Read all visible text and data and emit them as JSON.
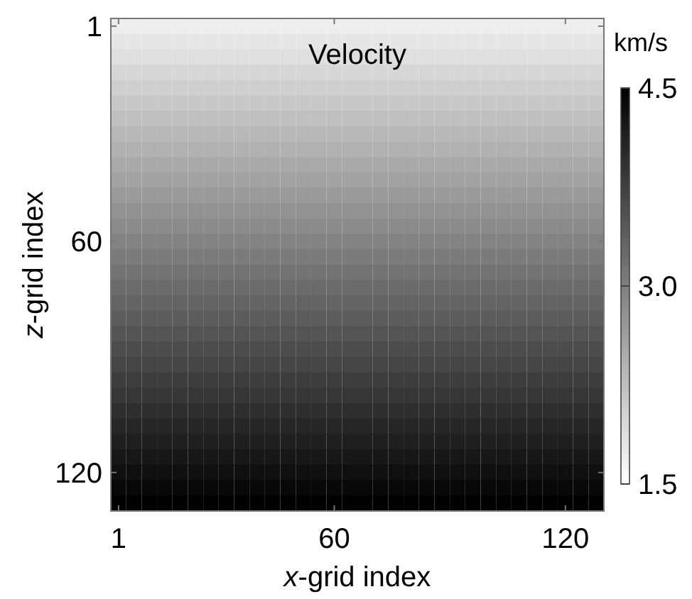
{
  "chart_data": {
    "type": "heatmap",
    "title": "Velocity",
    "xlabel": "x-grid index",
    "ylabel": "z-grid index",
    "clabel": "km/s",
    "categories": [
      "1",
      null,
      null,
      null,
      null,
      null,
      null,
      null,
      null,
      null,
      null,
      null,
      null,
      null,
      "60",
      null,
      null,
      null,
      null,
      null,
      null,
      null,
      null,
      null,
      null,
      null,
      null,
      null,
      null,
      "120",
      null,
      null
    ],
    "y_categories": [
      "1",
      null,
      null,
      null,
      null,
      null,
      null,
      null,
      null,
      null,
      null,
      null,
      null,
      null,
      "60",
      null,
      null,
      null,
      null,
      null,
      null,
      null,
      null,
      null,
      null,
      null,
      null,
      null,
      null,
      "120",
      null,
      null
    ],
    "cells": [
      [
        1.7,
        1.7,
        1.7,
        1.7,
        1.7,
        1.7,
        1.7,
        1.7,
        1.7,
        1.7,
        1.7,
        1.7,
        1.7,
        1.7,
        1.7,
        1.7,
        1.7,
        1.7,
        1.7,
        1.7,
        1.7,
        1.7,
        1.7,
        1.7,
        1.7,
        1.7,
        1.7,
        1.7,
        1.7,
        1.7,
        1.7,
        1.7
      ],
      [
        1.79,
        1.79,
        1.79,
        1.79,
        1.79,
        1.79,
        1.79,
        1.79,
        1.79,
        1.79,
        1.79,
        1.79,
        1.79,
        1.79,
        1.79,
        1.79,
        1.79,
        1.79,
        1.79,
        1.79,
        1.79,
        1.79,
        1.79,
        1.79,
        1.79,
        1.79,
        1.79,
        1.79,
        1.79,
        1.79,
        1.79,
        1.79
      ],
      [
        1.88,
        1.88,
        1.88,
        1.88,
        1.88,
        1.88,
        1.88,
        1.88,
        1.88,
        1.88,
        1.88,
        1.88,
        1.88,
        1.88,
        1.88,
        1.88,
        1.88,
        1.88,
        1.88,
        1.88,
        1.88,
        1.88,
        1.88,
        1.88,
        1.88,
        1.88,
        1.88,
        1.88,
        1.88,
        1.88,
        1.88,
        1.88
      ],
      [
        1.97,
        1.97,
        1.97,
        1.97,
        1.97,
        1.97,
        1.97,
        1.97,
        1.97,
        1.97,
        1.97,
        1.97,
        1.97,
        1.97,
        1.97,
        1.97,
        1.97,
        1.97,
        1.97,
        1.97,
        1.97,
        1.97,
        1.97,
        1.97,
        1.97,
        1.97,
        1.97,
        1.97,
        1.97,
        1.97,
        1.97,
        1.97
      ],
      [
        2.06,
        2.06,
        2.06,
        2.06,
        2.06,
        2.06,
        2.06,
        2.06,
        2.06,
        2.06,
        2.06,
        2.06,
        2.06,
        2.06,
        2.06,
        2.06,
        2.06,
        2.06,
        2.06,
        2.06,
        2.06,
        2.06,
        2.06,
        2.06,
        2.06,
        2.06,
        2.06,
        2.06,
        2.06,
        2.06,
        2.06,
        2.06
      ],
      [
        2.15,
        2.15,
        2.15,
        2.15,
        2.15,
        2.15,
        2.15,
        2.15,
        2.15,
        2.15,
        2.15,
        2.15,
        2.15,
        2.15,
        2.15,
        2.15,
        2.15,
        2.15,
        2.15,
        2.15,
        2.15,
        2.15,
        2.15,
        2.15,
        2.15,
        2.15,
        2.15,
        2.15,
        2.15,
        2.15,
        2.15,
        2.15
      ],
      [
        2.24,
        2.24,
        2.24,
        2.24,
        2.24,
        2.24,
        2.24,
        2.24,
        2.24,
        2.24,
        2.24,
        2.24,
        2.24,
        2.24,
        2.24,
        2.24,
        2.24,
        2.24,
        2.24,
        2.24,
        2.24,
        2.24,
        2.24,
        2.24,
        2.24,
        2.24,
        2.24,
        2.24,
        2.24,
        2.24,
        2.24,
        2.24
      ],
      [
        2.33,
        2.33,
        2.33,
        2.33,
        2.33,
        2.33,
        2.33,
        2.33,
        2.33,
        2.33,
        2.33,
        2.33,
        2.33,
        2.33,
        2.33,
        2.33,
        2.33,
        2.33,
        2.33,
        2.33,
        2.33,
        2.33,
        2.33,
        2.33,
        2.33,
        2.33,
        2.33,
        2.33,
        2.33,
        2.33,
        2.33,
        2.33
      ],
      [
        2.42,
        2.42,
        2.42,
        2.42,
        2.42,
        2.42,
        2.42,
        2.42,
        2.42,
        2.42,
        2.42,
        2.42,
        2.42,
        2.42,
        2.42,
        2.42,
        2.42,
        2.42,
        2.42,
        2.42,
        2.42,
        2.42,
        2.42,
        2.42,
        2.42,
        2.42,
        2.42,
        2.42,
        2.42,
        2.42,
        2.42,
        2.42
      ],
      [
        2.51,
        2.51,
        2.51,
        2.51,
        2.51,
        2.51,
        2.51,
        2.51,
        2.51,
        2.51,
        2.51,
        2.51,
        2.51,
        2.51,
        2.51,
        2.51,
        2.51,
        2.51,
        2.51,
        2.51,
        2.51,
        2.51,
        2.51,
        2.51,
        2.51,
        2.51,
        2.51,
        2.51,
        2.51,
        2.51,
        2.51,
        2.51
      ],
      [
        2.6,
        2.6,
        2.6,
        2.6,
        2.6,
        2.6,
        2.6,
        2.6,
        2.6,
        2.6,
        2.6,
        2.6,
        2.6,
        2.6,
        2.6,
        2.6,
        2.6,
        2.6,
        2.6,
        2.6,
        2.6,
        2.6,
        2.6,
        2.6,
        2.6,
        2.6,
        2.6,
        2.6,
        2.6,
        2.6,
        2.6,
        2.6
      ],
      [
        2.69,
        2.69,
        2.69,
        2.69,
        2.69,
        2.69,
        2.69,
        2.69,
        2.69,
        2.69,
        2.69,
        2.69,
        2.69,
        2.69,
        2.69,
        2.69,
        2.69,
        2.69,
        2.69,
        2.69,
        2.69,
        2.69,
        2.69,
        2.69,
        2.69,
        2.69,
        2.69,
        2.69,
        2.69,
        2.69,
        2.69,
        2.69
      ],
      [
        2.78,
        2.78,
        2.78,
        2.78,
        2.78,
        2.78,
        2.78,
        2.78,
        2.78,
        2.78,
        2.78,
        2.78,
        2.78,
        2.78,
        2.78,
        2.78,
        2.78,
        2.78,
        2.78,
        2.78,
        2.78,
        2.78,
        2.78,
        2.78,
        2.78,
        2.78,
        2.78,
        2.78,
        2.78,
        2.78,
        2.78,
        2.78
      ],
      [
        2.87,
        2.87,
        2.87,
        2.87,
        2.87,
        2.87,
        2.87,
        2.87,
        2.87,
        2.87,
        2.87,
        2.87,
        2.87,
        2.87,
        2.87,
        2.87,
        2.87,
        2.87,
        2.87,
        2.87,
        2.87,
        2.87,
        2.87,
        2.87,
        2.87,
        2.87,
        2.87,
        2.87,
        2.87,
        2.87,
        2.87,
        2.87
      ],
      [
        2.96,
        2.96,
        2.96,
        2.96,
        2.96,
        2.96,
        2.96,
        2.96,
        2.96,
        2.96,
        2.96,
        2.96,
        2.96,
        2.96,
        2.96,
        2.96,
        2.96,
        2.96,
        2.96,
        2.96,
        2.96,
        2.96,
        2.96,
        2.96,
        2.96,
        2.96,
        2.96,
        2.96,
        2.96,
        2.96,
        2.96,
        2.96
      ],
      [
        3.05,
        3.05,
        3.05,
        3.05,
        3.05,
        3.05,
        3.05,
        3.05,
        3.05,
        3.05,
        3.05,
        3.05,
        3.05,
        3.05,
        3.05,
        3.05,
        3.05,
        3.05,
        3.05,
        3.05,
        3.05,
        3.05,
        3.05,
        3.05,
        3.05,
        3.05,
        3.05,
        3.05,
        3.05,
        3.05,
        3.05,
        3.05
      ],
      [
        3.15,
        3.15,
        3.15,
        3.15,
        3.15,
        3.15,
        3.15,
        3.15,
        3.15,
        3.15,
        3.15,
        3.15,
        3.15,
        3.15,
        3.15,
        3.15,
        3.15,
        3.15,
        3.15,
        3.15,
        3.15,
        3.15,
        3.15,
        3.15,
        3.15,
        3.15,
        3.15,
        3.15,
        3.15,
        3.15,
        3.15,
        3.15
      ],
      [
        3.24,
        3.24,
        3.24,
        3.24,
        3.24,
        3.24,
        3.24,
        3.24,
        3.24,
        3.24,
        3.24,
        3.24,
        3.24,
        3.24,
        3.24,
        3.24,
        3.24,
        3.24,
        3.24,
        3.24,
        3.24,
        3.24,
        3.24,
        3.24,
        3.24,
        3.24,
        3.24,
        3.24,
        3.24,
        3.24,
        3.24,
        3.24
      ],
      [
        3.33,
        3.33,
        3.33,
        3.33,
        3.33,
        3.33,
        3.33,
        3.33,
        3.33,
        3.33,
        3.33,
        3.33,
        3.33,
        3.33,
        3.33,
        3.33,
        3.33,
        3.33,
        3.33,
        3.33,
        3.33,
        3.33,
        3.33,
        3.33,
        3.33,
        3.33,
        3.33,
        3.33,
        3.33,
        3.33,
        3.33,
        3.33
      ],
      [
        3.42,
        3.42,
        3.42,
        3.42,
        3.42,
        3.42,
        3.42,
        3.42,
        3.42,
        3.42,
        3.42,
        3.42,
        3.42,
        3.42,
        3.42,
        3.42,
        3.42,
        3.42,
        3.42,
        3.42,
        3.42,
        3.42,
        3.42,
        3.42,
        3.42,
        3.42,
        3.42,
        3.42,
        3.42,
        3.42,
        3.42,
        3.42
      ],
      [
        3.51,
        3.51,
        3.51,
        3.51,
        3.51,
        3.51,
        3.51,
        3.51,
        3.51,
        3.51,
        3.51,
        3.51,
        3.51,
        3.51,
        3.51,
        3.51,
        3.51,
        3.51,
        3.51,
        3.51,
        3.51,
        3.51,
        3.51,
        3.51,
        3.51,
        3.51,
        3.51,
        3.51,
        3.51,
        3.51,
        3.51,
        3.51
      ],
      [
        3.6,
        3.6,
        3.6,
        3.6,
        3.6,
        3.6,
        3.6,
        3.6,
        3.6,
        3.6,
        3.6,
        3.6,
        3.6,
        3.6,
        3.6,
        3.6,
        3.6,
        3.6,
        3.6,
        3.6,
        3.6,
        3.6,
        3.6,
        3.6,
        3.6,
        3.6,
        3.6,
        3.6,
        3.6,
        3.6,
        3.6,
        3.6
      ],
      [
        3.69,
        3.69,
        3.69,
        3.69,
        3.69,
        3.69,
        3.69,
        3.69,
        3.69,
        3.69,
        3.69,
        3.69,
        3.69,
        3.69,
        3.69,
        3.69,
        3.69,
        3.69,
        3.69,
        3.69,
        3.69,
        3.69,
        3.69,
        3.69,
        3.69,
        3.69,
        3.69,
        3.69,
        3.69,
        3.69,
        3.69,
        3.69
      ],
      [
        3.78,
        3.78,
        3.78,
        3.78,
        3.78,
        3.78,
        3.78,
        3.78,
        3.78,
        3.78,
        3.78,
        3.78,
        3.78,
        3.78,
        3.78,
        3.78,
        3.78,
        3.78,
        3.78,
        3.78,
        3.78,
        3.78,
        3.78,
        3.78,
        3.78,
        3.78,
        3.78,
        3.78,
        3.78,
        3.78,
        3.78,
        3.78
      ],
      [
        3.87,
        3.87,
        3.87,
        3.87,
        3.87,
        3.87,
        3.87,
        3.87,
        3.87,
        3.87,
        3.87,
        3.87,
        3.87,
        3.87,
        3.87,
        3.87,
        3.87,
        3.87,
        3.87,
        3.87,
        3.87,
        3.87,
        3.87,
        3.87,
        3.87,
        3.87,
        3.87,
        3.87,
        3.87,
        3.87,
        3.87,
        3.87
      ],
      [
        3.96,
        3.96,
        3.96,
        3.96,
        3.96,
        3.96,
        3.96,
        3.96,
        3.96,
        3.96,
        3.96,
        3.96,
        3.96,
        3.96,
        3.96,
        3.96,
        3.96,
        3.96,
        3.96,
        3.96,
        3.96,
        3.96,
        3.96,
        3.96,
        3.96,
        3.96,
        3.96,
        3.96,
        3.96,
        3.96,
        3.96,
        3.96
      ],
      [
        4.05,
        4.05,
        4.05,
        4.05,
        4.05,
        4.05,
        4.05,
        4.05,
        4.05,
        4.05,
        4.05,
        4.05,
        4.05,
        4.05,
        4.05,
        4.05,
        4.05,
        4.05,
        4.05,
        4.05,
        4.05,
        4.05,
        4.05,
        4.05,
        4.05,
        4.05,
        4.05,
        4.05,
        4.05,
        4.05,
        4.05,
        4.05
      ],
      [
        4.14,
        4.14,
        4.14,
        4.14,
        4.14,
        4.14,
        4.14,
        4.14,
        4.14,
        4.14,
        4.14,
        4.14,
        4.14,
        4.14,
        4.14,
        4.14,
        4.14,
        4.14,
        4.14,
        4.14,
        4.14,
        4.14,
        4.14,
        4.14,
        4.14,
        4.14,
        4.14,
        4.14,
        4.14,
        4.14,
        4.14,
        4.14
      ],
      [
        4.23,
        4.23,
        4.23,
        4.23,
        4.23,
        4.23,
        4.23,
        4.23,
        4.23,
        4.23,
        4.23,
        4.23,
        4.23,
        4.23,
        4.23,
        4.23,
        4.23,
        4.23,
        4.23,
        4.23,
        4.23,
        4.23,
        4.23,
        4.23,
        4.23,
        4.23,
        4.23,
        4.23,
        4.23,
        4.23,
        4.23,
        4.23
      ],
      [
        4.32,
        4.32,
        4.32,
        4.32,
        4.32,
        4.32,
        4.32,
        4.32,
        4.32,
        4.32,
        4.32,
        4.32,
        4.32,
        4.32,
        4.32,
        4.32,
        4.32,
        4.32,
        4.32,
        4.32,
        4.32,
        4.32,
        4.32,
        4.32,
        4.32,
        4.32,
        4.32,
        4.32,
        4.32,
        4.32,
        4.32,
        4.32
      ],
      [
        4.41,
        4.41,
        4.41,
        4.41,
        4.41,
        4.41,
        4.41,
        4.41,
        4.41,
        4.41,
        4.41,
        4.41,
        4.41,
        4.41,
        4.41,
        4.41,
        4.41,
        4.41,
        4.41,
        4.41,
        4.41,
        4.41,
        4.41,
        4.41,
        4.41,
        4.41,
        4.41,
        4.41,
        4.41,
        4.41,
        4.41,
        4.41
      ],
      [
        4.5,
        4.5,
        4.5,
        4.5,
        4.5,
        4.5,
        4.5,
        4.5,
        4.5,
        4.5,
        4.5,
        4.5,
        4.5,
        4.5,
        4.5,
        4.5,
        4.5,
        4.5,
        4.5,
        4.5,
        4.5,
        4.5,
        4.5,
        4.5,
        4.5,
        4.5,
        4.5,
        4.5,
        4.5,
        4.5,
        4.5,
        4.5
      ]
    ],
    "clim": [
      1.5,
      4.5
    ],
    "cticks": [
      1.5,
      {
        "value": 3,
        "label": "3.0"
      },
      4.5
    ]
  }
}
